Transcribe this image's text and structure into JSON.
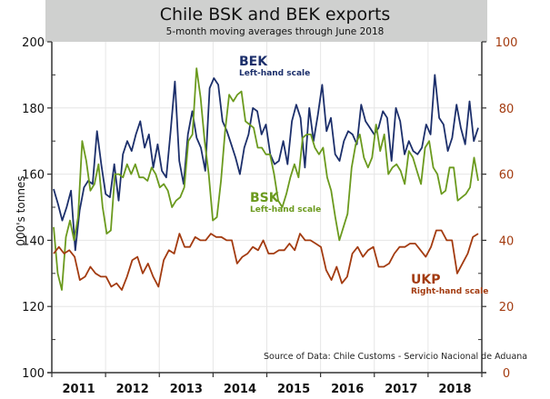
{
  "chart_data": {
    "type": "line",
    "title": "Chile BSK and BEK exports",
    "subtitle": "5-month moving averages through June 2018",
    "ylabel": "000's tonnes",
    "ylim": [
      100,
      200
    ],
    "y2lim": [
      0,
      100
    ],
    "yticks": [
      "100",
      "120",
      "140",
      "160",
      "180",
      "200"
    ],
    "y2ticks": [
      "0",
      "20",
      "40",
      "60",
      "80",
      "100"
    ],
    "xticks": [
      "2011",
      "2012",
      "2013",
      "2014",
      "2015",
      "2016",
      "2017",
      "2018"
    ],
    "source": "Source of Data: Chile Customs - Servicio Nacional de Aduana",
    "series": [
      {
        "name": "BEK",
        "note": "Left-hand scale",
        "axis": "left",
        "color": "#1c2f6b",
        "values": [
          155.5,
          151,
          146,
          150,
          155,
          137,
          149,
          156,
          158,
          157,
          173,
          163,
          154,
          153,
          163,
          152,
          166,
          170,
          167,
          172,
          176,
          168,
          172,
          162,
          169,
          161,
          159,
          173,
          188,
          164,
          157,
          172,
          179,
          171,
          168,
          161,
          186,
          189,
          187,
          176,
          173,
          169,
          165,
          160,
          168,
          172,
          180,
          179,
          172,
          175,
          166,
          163,
          164,
          170,
          163,
          176,
          181,
          177,
          162,
          180,
          170,
          178,
          187,
          173,
          177,
          166,
          164,
          170,
          173,
          172,
          169,
          181,
          176,
          174,
          172,
          174,
          179,
          177,
          164,
          180,
          176,
          166,
          170,
          167,
          166,
          168,
          175,
          172,
          190,
          177,
          175,
          167,
          171,
          181,
          174,
          169,
          182,
          170,
          174
        ]
      },
      {
        "name": "BSK",
        "note": "Left-hand scale",
        "axis": "left",
        "color": "#6b9a1e",
        "values": [
          144,
          130,
          125,
          141,
          146,
          140,
          147,
          170,
          164,
          155,
          157,
          163,
          150,
          142,
          143,
          160,
          160,
          159,
          163,
          160,
          163,
          159,
          159,
          158,
          162,
          160,
          156,
          157,
          155,
          150,
          152,
          153,
          156,
          170,
          172,
          192,
          183,
          170,
          160,
          146,
          147,
          158,
          173,
          184,
          182,
          184,
          185,
          176,
          175,
          174,
          168,
          168,
          166,
          166,
          160,
          152,
          150,
          154,
          159,
          163,
          159,
          171,
          172,
          172,
          168,
          166,
          168,
          159,
          155,
          147,
          140,
          144,
          148,
          162,
          169,
          172,
          165,
          162,
          165,
          175,
          167,
          172,
          160,
          162,
          163,
          161,
          157,
          167,
          165,
          161,
          157,
          168,
          170,
          162,
          160,
          154,
          155,
          162,
          162,
          152,
          153,
          154,
          156,
          165,
          158
        ]
      },
      {
        "name": "UKP",
        "note": "Right-hand scale",
        "axis": "right",
        "color": "#a33b10",
        "values": [
          36,
          38,
          36,
          37,
          35,
          28,
          29,
          32,
          30,
          29,
          29,
          26,
          27,
          25,
          29,
          34,
          35,
          30,
          33,
          29,
          26,
          34,
          37,
          36,
          42,
          38,
          38,
          41,
          40,
          40,
          42,
          41,
          41,
          40,
          40,
          33,
          35,
          36,
          38,
          37,
          40,
          36,
          36,
          37,
          37,
          39,
          37,
          42,
          40,
          40,
          39,
          38,
          31,
          28,
          32,
          27,
          29,
          36,
          38,
          35,
          37,
          38,
          32,
          32,
          33,
          36,
          38,
          38,
          39,
          39,
          37,
          35,
          38,
          43,
          43,
          40,
          40,
          30,
          33,
          36,
          41,
          42
        ]
      }
    ],
    "grid": true,
    "legend": "inline-annotations"
  },
  "annotations": {
    "bek": {
      "name": "BEK",
      "scale": "Left-hand scale"
    },
    "bsk": {
      "name": "BSK",
      "scale": "Left-hand scale"
    },
    "ukp": {
      "name": "UKP",
      "scale": "Right-hand scale"
    }
  }
}
